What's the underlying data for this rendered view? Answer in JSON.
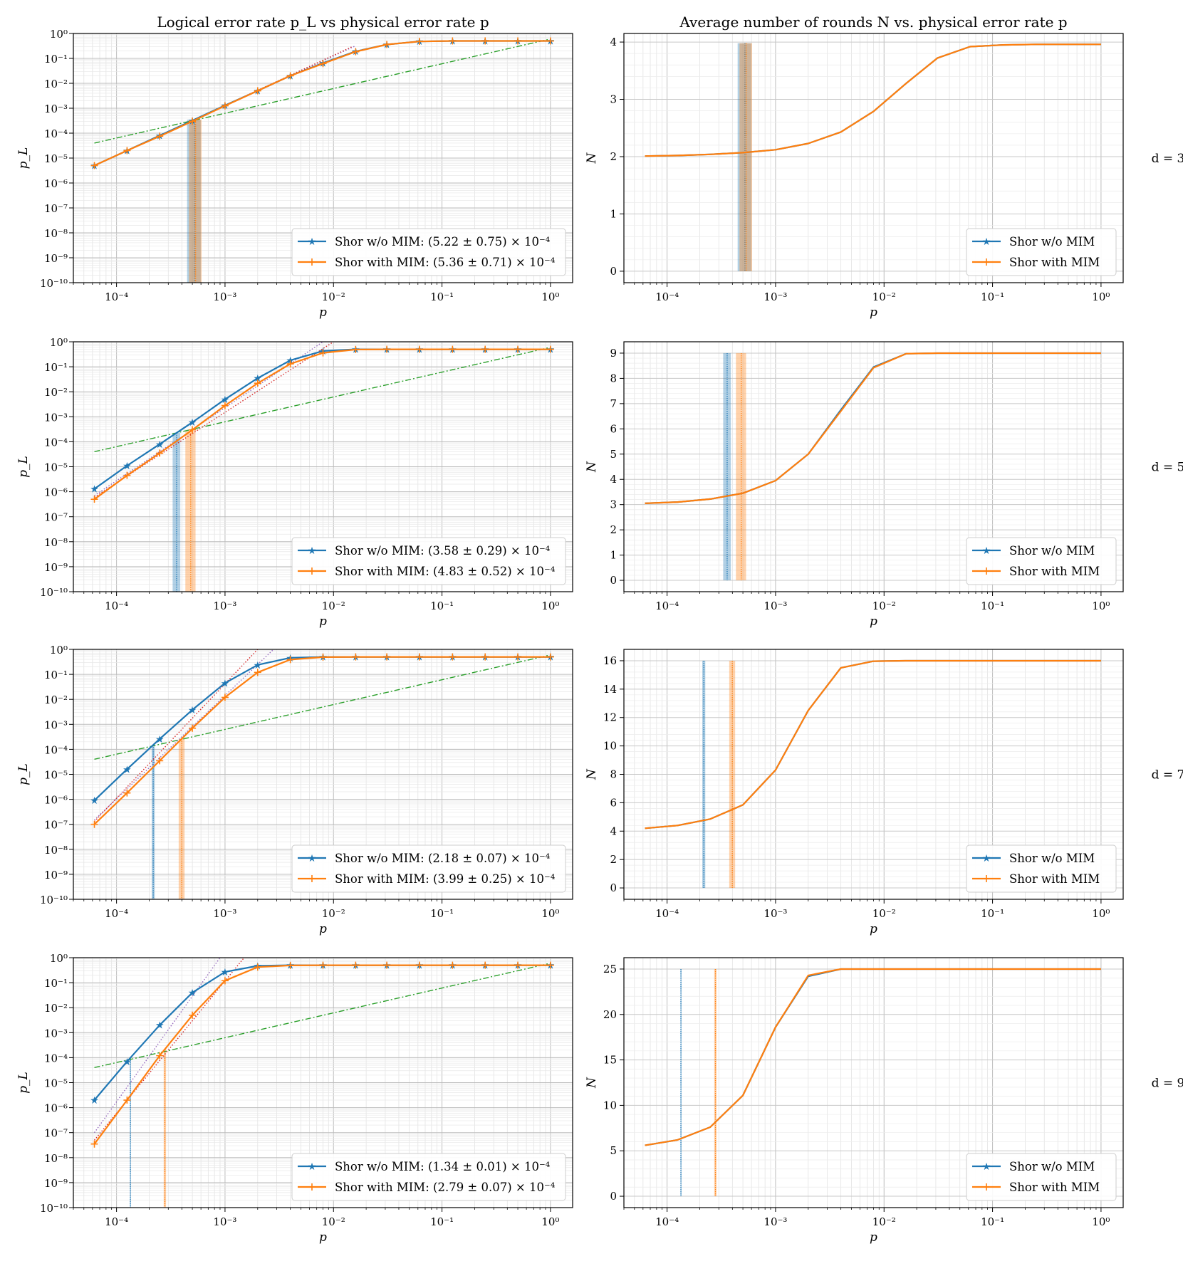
{
  "chart_data": [
    {
      "type": "line",
      "scale": {
        "x": "log",
        "y": "log"
      },
      "title": "Logical error rate p_L vs physical error rate p",
      "xlabel": "p",
      "ylabel": "p_L",
      "xlim": [
        4e-05,
        1.6
      ],
      "ylim": [
        1e-10,
        1
      ],
      "row_label": "d = 3",
      "legend": "bottom-right",
      "x": [
        6.25e-05,
        0.000125,
        0.00025,
        0.0005,
        0.001,
        0.002,
        0.004,
        0.008,
        0.016,
        0.031,
        0.062,
        0.125,
        0.25,
        0.5,
        1
      ],
      "series": [
        {
          "name": "Shor w/o MIM: (5.22 ± 0.75) × 10^-4",
          "threshold": 0.000522,
          "threshold_err": 7.5e-05,
          "values": [
            5e-06,
            2e-05,
            8e-05,
            0.00032,
            0.0013,
            0.005,
            0.02,
            0.065,
            0.19,
            0.36,
            0.48,
            0.5,
            0.5,
            0.5,
            0.5
          ]
        },
        {
          "name": "Shor with MIM: (5.36 ± 0.71) × 10^-4",
          "threshold": 0.000536,
          "threshold_err": 7.1e-05,
          "values": [
            5e-06,
            2e-05,
            7.5e-05,
            0.0003,
            0.00125,
            0.005,
            0.02,
            0.062,
            0.185,
            0.36,
            0.48,
            0.5,
            0.5,
            0.5,
            0.5
          ]
        }
      ],
      "reference_lines": [
        {
          "name": "p_L = p",
          "style": "dashdot",
          "x": [
            6.25e-05,
            1
          ],
          "values": [
            4e-05,
            0.6
          ]
        },
        {
          "name": "fit w/o MIM",
          "style": "dotted",
          "x": [
            6.25e-05,
            0.016
          ],
          "values": [
            5e-06,
            0.32
          ]
        },
        {
          "name": "fit with MIM",
          "style": "dotted",
          "x": [
            6.25e-05,
            0.015
          ],
          "values": [
            5e-06,
            0.3
          ]
        }
      ]
    },
    {
      "type": "line",
      "scale": {
        "x": "log",
        "y": "linear"
      },
      "title": "Average number of rounds N vs. physical error rate p",
      "xlabel": "p",
      "ylabel": "N",
      "xlim": [
        4e-05,
        1.6
      ],
      "ylim": [
        -0.2,
        4.15
      ],
      "yticks": [
        0,
        1,
        2,
        3,
        4
      ],
      "legend": "bottom-right",
      "x": [
        6.25e-05,
        0.000125,
        0.00025,
        0.0005,
        0.001,
        0.002,
        0.004,
        0.008,
        0.016,
        0.031,
        0.062,
        0.125,
        0.25,
        0.5,
        1
      ],
      "series": [
        {
          "name": "Shor w/o MIM",
          "threshold": 0.000522,
          "threshold_err": 7.5e-05,
          "values": [
            2.01,
            2.02,
            2.04,
            2.07,
            2.12,
            2.23,
            2.43,
            2.79,
            3.28,
            3.72,
            3.92,
            3.95,
            3.96,
            3.96,
            3.96
          ]
        },
        {
          "name": "Shor with MIM",
          "threshold": 0.000536,
          "threshold_err": 7.1e-05,
          "values": [
            2.01,
            2.02,
            2.04,
            2.07,
            2.12,
            2.23,
            2.43,
            2.79,
            3.28,
            3.72,
            3.92,
            3.95,
            3.96,
            3.96,
            3.96
          ]
        }
      ]
    },
    {
      "type": "line",
      "scale": {
        "x": "log",
        "y": "log"
      },
      "title": "",
      "xlabel": "p",
      "ylabel": "p_L",
      "xlim": [
        4e-05,
        1.6
      ],
      "ylim": [
        1e-10,
        1
      ],
      "row_label": "d = 5",
      "legend": "bottom-right",
      "x": [
        6.25e-05,
        0.000125,
        0.00025,
        0.0005,
        0.001,
        0.002,
        0.004,
        0.008,
        0.016,
        0.031,
        0.062,
        0.125,
        0.25,
        0.5,
        1
      ],
      "series": [
        {
          "name": "Shor w/o MIM: (3.58 ± 0.29) × 10^-4",
          "threshold": 0.000358,
          "threshold_err": 2.9e-05,
          "values": [
            1.3e-06,
            1.1e-05,
            8e-05,
            0.0006,
            0.005,
            0.035,
            0.18,
            0.43,
            0.5,
            0.5,
            0.5,
            0.5,
            0.5,
            0.5,
            0.5
          ]
        },
        {
          "name": "Shor with MIM: (4.83 ± 0.52) × 10^-4",
          "threshold": 0.000483,
          "threshold_err": 5.2e-05,
          "values": [
            5e-07,
            4.5e-06,
            3.5e-05,
            0.0003,
            0.0028,
            0.022,
            0.13,
            0.36,
            0.49,
            0.5,
            0.5,
            0.5,
            0.5,
            0.5,
            0.5
          ]
        }
      ],
      "reference_lines": [
        {
          "name": "p_L = p",
          "style": "dashdot",
          "x": [
            6.25e-05,
            1
          ],
          "values": [
            4e-05,
            0.6
          ]
        },
        {
          "name": "fit w/o MIM",
          "style": "dotted",
          "x": [
            6.25e-05,
            0.008
          ],
          "values": [
            7e-07,
            1
          ]
        },
        {
          "name": "fit with MIM",
          "style": "dotted",
          "x": [
            6.25e-05,
            0.01
          ],
          "values": [
            6e-07,
            1
          ]
        }
      ]
    },
    {
      "type": "line",
      "scale": {
        "x": "log",
        "y": "linear"
      },
      "title": "",
      "xlabel": "p",
      "ylabel": "N",
      "xlim": [
        4e-05,
        1.6
      ],
      "ylim": [
        -0.45,
        9.45
      ],
      "yticks": [
        0,
        1,
        2,
        3,
        4,
        5,
        6,
        7,
        8,
        9
      ],
      "legend": "bottom-right",
      "x": [
        6.25e-05,
        0.000125,
        0.00025,
        0.0005,
        0.001,
        0.002,
        0.004,
        0.008,
        0.016,
        0.031,
        0.062,
        0.125,
        0.25,
        0.5,
        1
      ],
      "series": [
        {
          "name": "Shor w/o MIM",
          "threshold": 0.000358,
          "threshold_err": 2.9e-05,
          "values": [
            3.05,
            3.1,
            3.22,
            3.45,
            3.95,
            5.0,
            6.75,
            8.45,
            8.98,
            9.0,
            9.0,
            9.0,
            9.0,
            9.0,
            9.0
          ]
        },
        {
          "name": "Shor with MIM",
          "threshold": 0.000483,
          "threshold_err": 5.2e-05,
          "values": [
            3.05,
            3.1,
            3.22,
            3.45,
            3.95,
            5.0,
            6.7,
            8.42,
            8.98,
            9.0,
            9.0,
            9.0,
            9.0,
            9.0,
            9.0
          ]
        }
      ]
    },
    {
      "type": "line",
      "scale": {
        "x": "log",
        "y": "log"
      },
      "title": "",
      "xlabel": "p",
      "ylabel": "p_L",
      "xlim": [
        4e-05,
        1.6
      ],
      "ylim": [
        1e-10,
        1
      ],
      "row_label": "d = 7",
      "legend": "bottom-right",
      "x": [
        6.25e-05,
        0.000125,
        0.00025,
        0.0005,
        0.001,
        0.002,
        0.004,
        0.008,
        0.016,
        0.031,
        0.062,
        0.125,
        0.25,
        0.5,
        1
      ],
      "series": [
        {
          "name": "Shor w/o MIM: (2.18 ± 0.07) × 10^-4",
          "threshold": 0.000218,
          "threshold_err": 7e-06,
          "values": [
            9e-07,
            1.6e-05,
            0.00026,
            0.0038,
            0.045,
            0.24,
            0.46,
            0.5,
            0.5,
            0.5,
            0.5,
            0.5,
            0.5,
            0.5,
            0.5
          ]
        },
        {
          "name": "Shor with MIM: (3.99 ± 0.25) × 10^-4",
          "threshold": 0.000399,
          "threshold_err": 2.5e-05,
          "values": [
            1e-07,
            1.8e-06,
            3.5e-05,
            0.0007,
            0.012,
            0.12,
            0.39,
            0.49,
            0.5,
            0.5,
            0.5,
            0.5,
            0.5,
            0.5,
            0.5
          ]
        }
      ],
      "reference_lines": [
        {
          "name": "p_L = p",
          "style": "dashdot",
          "x": [
            6.25e-05,
            1
          ],
          "values": [
            4e-05,
            0.6
          ]
        },
        {
          "name": "fit w/o MIM",
          "style": "dotted",
          "x": [
            6.25e-05,
            0.0028
          ],
          "values": [
            1.5e-07,
            1
          ]
        },
        {
          "name": "fit with MIM",
          "style": "dotted",
          "x": [
            6.25e-05,
            0.002
          ],
          "values": [
            1.3e-07,
            1
          ]
        }
      ]
    },
    {
      "type": "line",
      "scale": {
        "x": "log",
        "y": "linear"
      },
      "title": "",
      "xlabel": "p",
      "ylabel": "N",
      "xlim": [
        4e-05,
        1.6
      ],
      "ylim": [
        -0.8,
        16.8
      ],
      "yticks": [
        0,
        2,
        4,
        6,
        8,
        10,
        12,
        14,
        16
      ],
      "legend": "bottom-right",
      "x": [
        6.25e-05,
        0.000125,
        0.00025,
        0.0005,
        0.001,
        0.002,
        0.004,
        0.008,
        0.016,
        0.031,
        0.062,
        0.125,
        0.25,
        0.5,
        1
      ],
      "series": [
        {
          "name": "Shor w/o MIM",
          "threshold": 0.000218,
          "threshold_err": 7e-06,
          "values": [
            4.2,
            4.4,
            4.85,
            5.85,
            8.3,
            12.5,
            15.5,
            15.97,
            16.0,
            16.0,
            16.0,
            16.0,
            16.0,
            16.0,
            16.0
          ]
        },
        {
          "name": "Shor with MIM",
          "threshold": 0.000399,
          "threshold_err": 2.5e-05,
          "values": [
            4.2,
            4.4,
            4.85,
            5.85,
            8.3,
            12.5,
            15.5,
            15.97,
            16.0,
            16.0,
            16.0,
            16.0,
            16.0,
            16.0,
            16.0
          ]
        }
      ]
    },
    {
      "type": "line",
      "scale": {
        "x": "log",
        "y": "log"
      },
      "title": "",
      "xlabel": "p",
      "ylabel": "p_L",
      "xlim": [
        4e-05,
        1.6
      ],
      "ylim": [
        1e-10,
        1
      ],
      "row_label": "d = 9",
      "legend": "bottom-right",
      "x": [
        6.25e-05,
        0.000125,
        0.00025,
        0.0005,
        0.001,
        0.002,
        0.004,
        0.008,
        0.016,
        0.031,
        0.062,
        0.125,
        0.25,
        0.5,
        1
      ],
      "series": [
        {
          "name": "Shor w/o MIM: (1.34 ± 0.01) × 10^-4",
          "threshold": 0.000134,
          "threshold_err": 1e-06,
          "values": [
            2e-06,
            7e-05,
            0.002,
            0.04,
            0.27,
            0.47,
            0.5,
            0.5,
            0.5,
            0.5,
            0.5,
            0.5,
            0.5,
            0.5,
            0.5
          ]
        },
        {
          "name": "Shor with MIM: (2.79 ± 0.07) × 10^-4",
          "threshold": 0.000279,
          "threshold_err": 7e-06,
          "values": [
            3.5e-08,
            2e-06,
            0.00012,
            0.005,
            0.12,
            0.42,
            0.49,
            0.5,
            0.5,
            0.5,
            0.5,
            0.5,
            0.5,
            0.5,
            0.5
          ]
        }
      ],
      "reference_lines": [
        {
          "name": "p_L = p",
          "style": "dashdot",
          "x": [
            6.25e-05,
            1
          ],
          "values": [
            4e-05,
            0.6
          ]
        },
        {
          "name": "fit w/o MIM",
          "style": "dotted",
          "x": [
            6.25e-05,
            0.0009
          ],
          "values": [
            1e-07,
            1
          ]
        },
        {
          "name": "fit with MIM",
          "style": "dotted",
          "x": [
            6.25e-05,
            0.0015
          ],
          "values": [
            5e-08,
            1
          ]
        }
      ]
    },
    {
      "type": "line",
      "scale": {
        "x": "log",
        "y": "linear"
      },
      "title": "",
      "xlabel": "p",
      "ylabel": "N",
      "xlim": [
        4e-05,
        1.6
      ],
      "ylim": [
        -1.25,
        26.25
      ],
      "yticks": [
        0,
        5,
        10,
        15,
        20,
        25
      ],
      "legend": "bottom-right",
      "x": [
        6.25e-05,
        0.000125,
        0.00025,
        0.0005,
        0.001,
        0.002,
        0.004,
        0.008,
        0.016,
        0.031,
        0.062,
        0.125,
        0.25,
        0.5,
        1
      ],
      "series": [
        {
          "name": "Shor w/o MIM",
          "threshold": 0.000134,
          "threshold_err": 1e-06,
          "values": [
            5.6,
            6.2,
            7.6,
            11.1,
            18.6,
            24.2,
            25.0,
            25.0,
            25.0,
            25.0,
            25.0,
            25.0,
            25.0,
            25.0,
            25.0
          ]
        },
        {
          "name": "Shor with MIM",
          "threshold": 0.000279,
          "threshold_err": 7e-06,
          "values": [
            5.6,
            6.2,
            7.6,
            11.1,
            18.6,
            24.3,
            25.0,
            25.0,
            25.0,
            25.0,
            25.0,
            25.0,
            25.0,
            25.0,
            25.0
          ]
        }
      ]
    }
  ],
  "colors": {
    "without_mim": "#1f77b4",
    "with_mim": "#ff7f0e",
    "reference": "#2ca02c",
    "fit_without": "#9467bd",
    "fit_with": "#d62728"
  }
}
